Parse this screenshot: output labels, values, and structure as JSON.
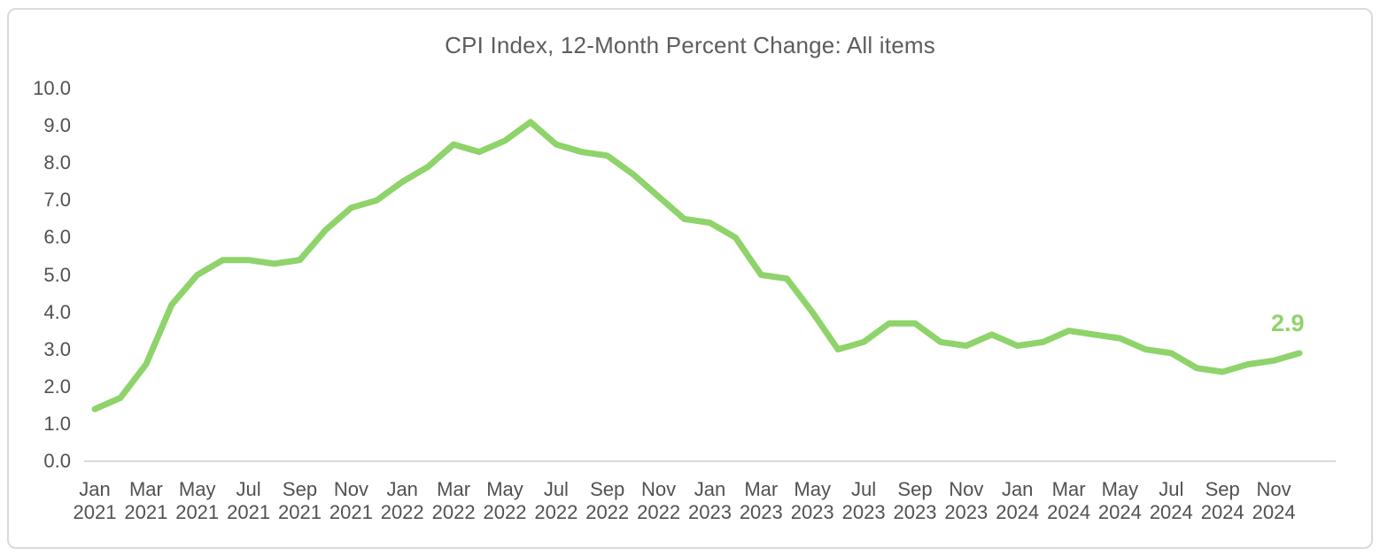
{
  "chart_data": {
    "type": "line",
    "title": "CPI Index, 12-Month Percent Change: All items",
    "series_name": "All items",
    "x": [
      "Jan 2021",
      "Feb 2021",
      "Mar 2021",
      "Apr 2021",
      "May 2021",
      "Jun 2021",
      "Jul 2021",
      "Aug 2021",
      "Sep 2021",
      "Oct 2021",
      "Nov 2021",
      "Dec 2021",
      "Jan 2022",
      "Feb 2022",
      "Mar 2022",
      "Apr 2022",
      "May 2022",
      "Jun 2022",
      "Jul 2022",
      "Aug 2022",
      "Sep 2022",
      "Oct 2022",
      "Nov 2022",
      "Dec 2022",
      "Jan 2023",
      "Feb 2023",
      "Mar 2023",
      "Apr 2023",
      "May 2023",
      "Jun 2023",
      "Jul 2023",
      "Aug 2023",
      "Sep 2023",
      "Oct 2023",
      "Nov 2023",
      "Dec 2023",
      "Jan 2024",
      "Feb 2024",
      "Mar 2024",
      "Apr 2024",
      "May 2024",
      "Jun 2024",
      "Jul 2024",
      "Aug 2024",
      "Sep 2024",
      "Oct 2024",
      "Nov 2024",
      "Dec 2024"
    ],
    "values": [
      1.4,
      1.7,
      2.6,
      4.2,
      5.0,
      5.4,
      5.4,
      5.3,
      5.4,
      6.2,
      6.8,
      7.0,
      7.5,
      7.9,
      8.5,
      8.3,
      8.6,
      9.1,
      8.5,
      8.3,
      8.2,
      7.7,
      7.1,
      6.5,
      6.4,
      6.0,
      5.0,
      4.9,
      4.0,
      3.0,
      3.2,
      3.7,
      3.7,
      3.2,
      3.1,
      3.4,
      3.1,
      3.2,
      3.5,
      3.4,
      3.3,
      3.0,
      2.9,
      2.5,
      2.4,
      2.6,
      2.7,
      2.9
    ],
    "y_ticks": [
      "0.0",
      "1.0",
      "2.0",
      "3.0",
      "4.0",
      "5.0",
      "6.0",
      "7.0",
      "8.0",
      "9.0",
      "10.0"
    ],
    "x_tick_every_n": 2,
    "ylim": [
      0,
      10
    ],
    "xlabel": "",
    "ylabel": "",
    "grid": false,
    "legend": "none",
    "end_label": "2.9",
    "line_color": "#8fd36b",
    "end_label_color": "#8fd36b",
    "axis_line_color": "#d9d9d9"
  }
}
